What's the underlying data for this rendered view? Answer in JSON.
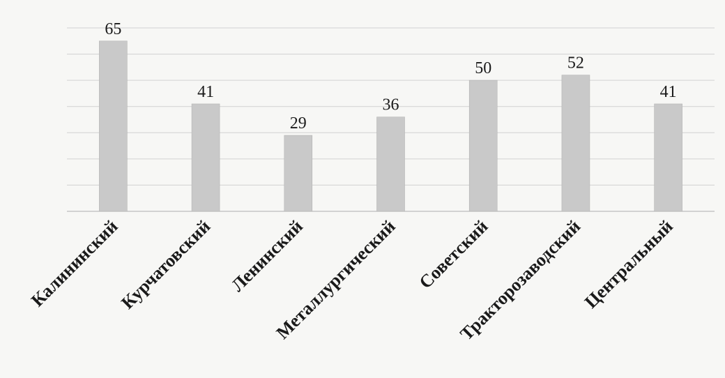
{
  "chart_data": {
    "type": "bar",
    "categories": [
      "Калининский",
      "Курчатовский",
      "Ленинский",
      "Металлургический",
      "Советский",
      "Тракторозаводский",
      "Центральный"
    ],
    "values": [
      65,
      41,
      29,
      36,
      50,
      52,
      41
    ],
    "title": "",
    "xlabel": "",
    "ylabel": "",
    "ylim": [
      0,
      70
    ],
    "grid": true,
    "legend": "none",
    "data_labels": [
      "65",
      "41",
      "29",
      "36",
      "50",
      "52",
      "41"
    ],
    "colors": {
      "bar": "#c9c9c9",
      "grid": "#d2d2d2",
      "text": "#1a1a1a"
    }
  }
}
